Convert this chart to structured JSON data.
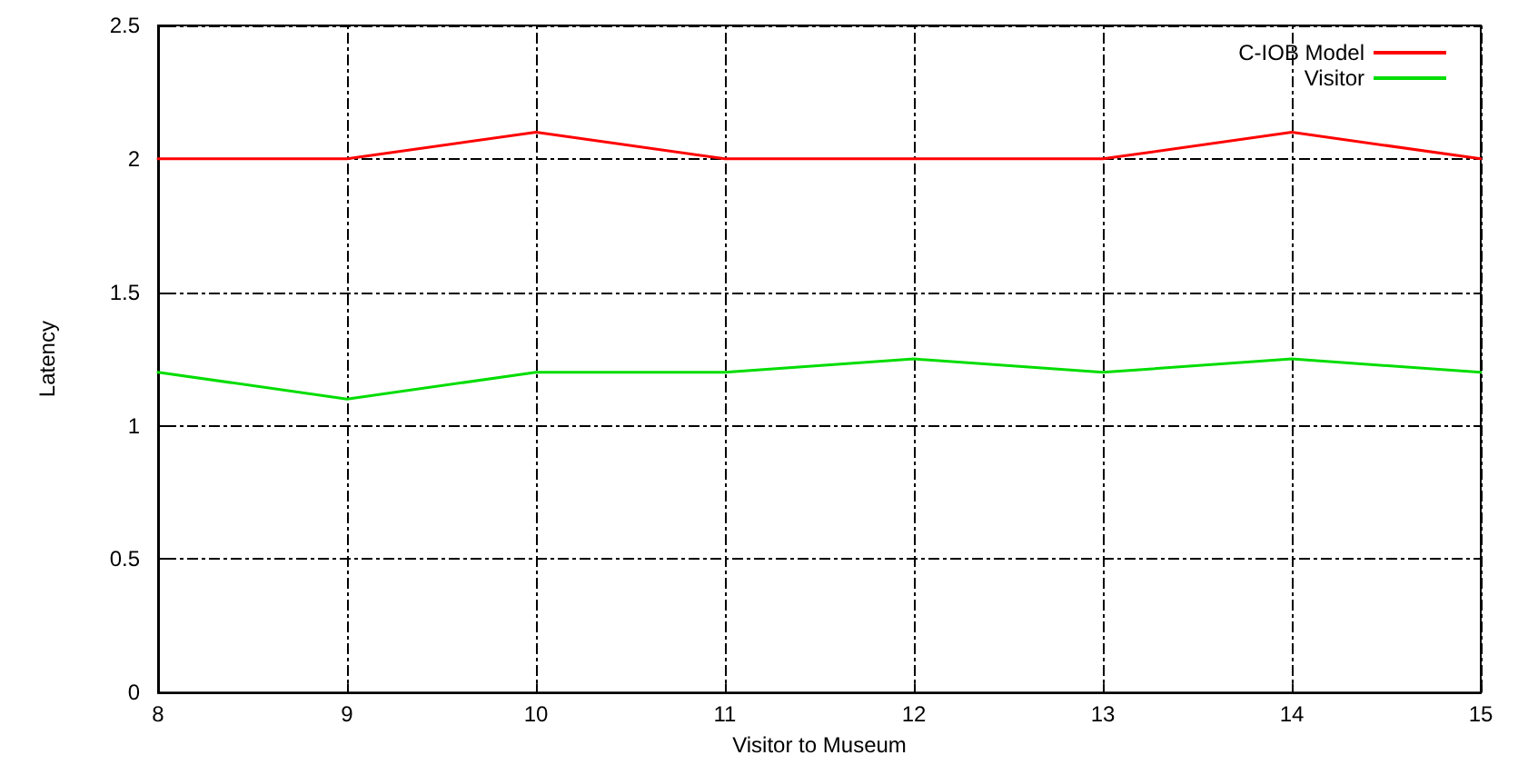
{
  "chart_data": {
    "type": "line",
    "xlabel": "Visitor to Museum",
    "ylabel": "Latency",
    "x": [
      8,
      9,
      10,
      11,
      12,
      13,
      14,
      15
    ],
    "series": [
      {
        "name": "C-IOB Model",
        "color": "#ff0000",
        "values": [
          2,
          2,
          2.1,
          2,
          2,
          2,
          2.1,
          2
        ]
      },
      {
        "name": "Visitor",
        "color": "#00dd00",
        "values": [
          1.2,
          1.1,
          1.2,
          1.2,
          1.25,
          1.2,
          1.25,
          1.2
        ]
      }
    ],
    "xlim": [
      8,
      15
    ],
    "xticks": [
      8,
      9,
      10,
      11,
      12,
      13,
      14,
      15
    ],
    "ylim": [
      0,
      2.5
    ],
    "yticks": [
      0,
      0.5,
      1,
      1.5,
      2,
      2.5
    ],
    "grid": true,
    "legend": "top right",
    "marker": "none",
    "line_style": "solid"
  }
}
